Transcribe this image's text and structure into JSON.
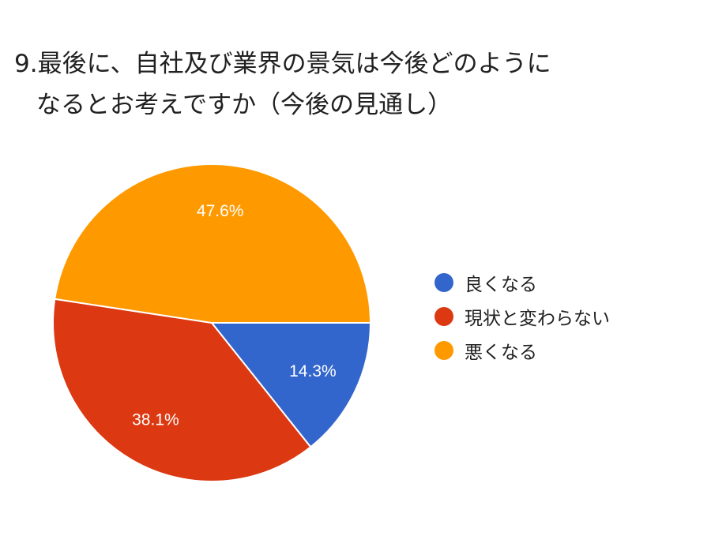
{
  "title": {
    "line1": "9.最後に、自社及び業界の景気は今後どのように",
    "line2": "なるとお考えですか（今後の見通し）"
  },
  "chart_data": {
    "type": "pie",
    "slices": [
      {
        "label": "良くなる",
        "value": 14.3,
        "value_label": "14.3%",
        "color": "#3366cc"
      },
      {
        "label": "現状と変わらない",
        "value": 38.1,
        "value_label": "38.1%",
        "color": "#dc3912"
      },
      {
        "label": "悪くなる",
        "value": 47.6,
        "value_label": "47.6%",
        "color": "#ff9900"
      }
    ],
    "legend_position": "right"
  }
}
